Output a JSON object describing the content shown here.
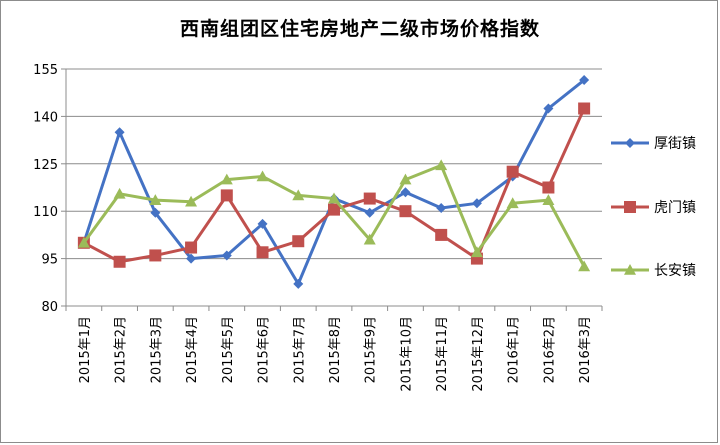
{
  "chart_data": {
    "type": "line",
    "title": "西南组团区住宅房地产二级市场价格指数",
    "categories": [
      "2015年1月",
      "2015年2月",
      "2015年3月",
      "2015年4月",
      "2015年5月",
      "2015年6月",
      "2015年7月",
      "2015年8月",
      "2015年9月",
      "2015年10月",
      "2015年11月",
      "2015年12月",
      "2016年1月",
      "2016年2月",
      "2016年3月"
    ],
    "ylim": [
      80,
      155
    ],
    "yticks": [
      80,
      95,
      110,
      125,
      140,
      155
    ],
    "grid": true,
    "legend_position": "right",
    "series": [
      {
        "name": "厚街镇",
        "color": "#4472c4",
        "marker": "diamond",
        "values": [
          100,
          135,
          109.5,
          95,
          96,
          106,
          87,
          114,
          109.5,
          116,
          111,
          112.5,
          121,
          142.5,
          151.5
        ]
      },
      {
        "name": "虎门镇",
        "color": "#c0504d",
        "marker": "square",
        "values": [
          100,
          94,
          96,
          98.5,
          115,
          97,
          100.5,
          110.5,
          114,
          110,
          102.5,
          95,
          122.5,
          117.5,
          142.5
        ]
      },
      {
        "name": "长安镇",
        "color": "#9bbb59",
        "marker": "triangle",
        "values": [
          100,
          115.5,
          113.5,
          113,
          120,
          121,
          115,
          114,
          101,
          120,
          124.5,
          97,
          112.5,
          113.5,
          92.5
        ]
      }
    ]
  }
}
